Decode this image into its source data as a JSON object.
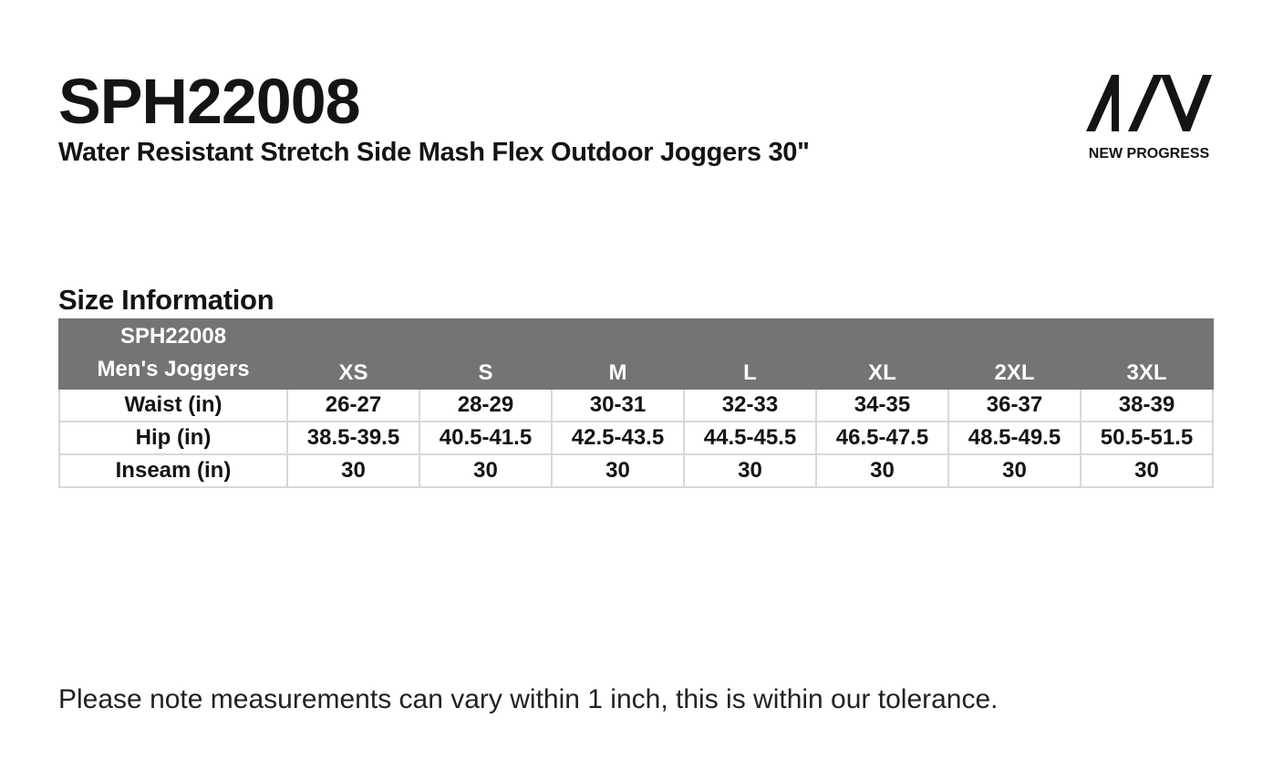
{
  "product": {
    "code": "SPH22008",
    "name": "Water Resistant Stretch Side Mash Flex Outdoor Joggers 30\""
  },
  "brand": {
    "logo_mark": "AIV",
    "name": "NEW PROGRESS"
  },
  "section_title": "Size Information",
  "table": {
    "corner_line1": "SPH22008",
    "corner_line2": "Men's Joggers",
    "sizes": [
      "XS",
      "S",
      "M",
      "L",
      "XL",
      "2XL",
      "3XL"
    ],
    "rows": [
      {
        "label": "Waist (in)",
        "values": [
          "26-27",
          "28-29",
          "30-31",
          "32-33",
          "34-35",
          "36-37",
          "38-39"
        ]
      },
      {
        "label": "Hip (in)",
        "values": [
          "38.5-39.5",
          "40.5-41.5",
          "42.5-43.5",
          "44.5-45.5",
          "46.5-47.5",
          "48.5-49.5",
          "50.5-51.5"
        ]
      },
      {
        "label": "Inseam (in)",
        "values": [
          "30",
          "30",
          "30",
          "30",
          "30",
          "30",
          "30"
        ]
      }
    ]
  },
  "note": "Please note measurements can vary within 1 inch, this is within our tolerance.",
  "colors": {
    "header_bg": "#747474",
    "border": "#d8d8d8",
    "text": "#141414"
  }
}
